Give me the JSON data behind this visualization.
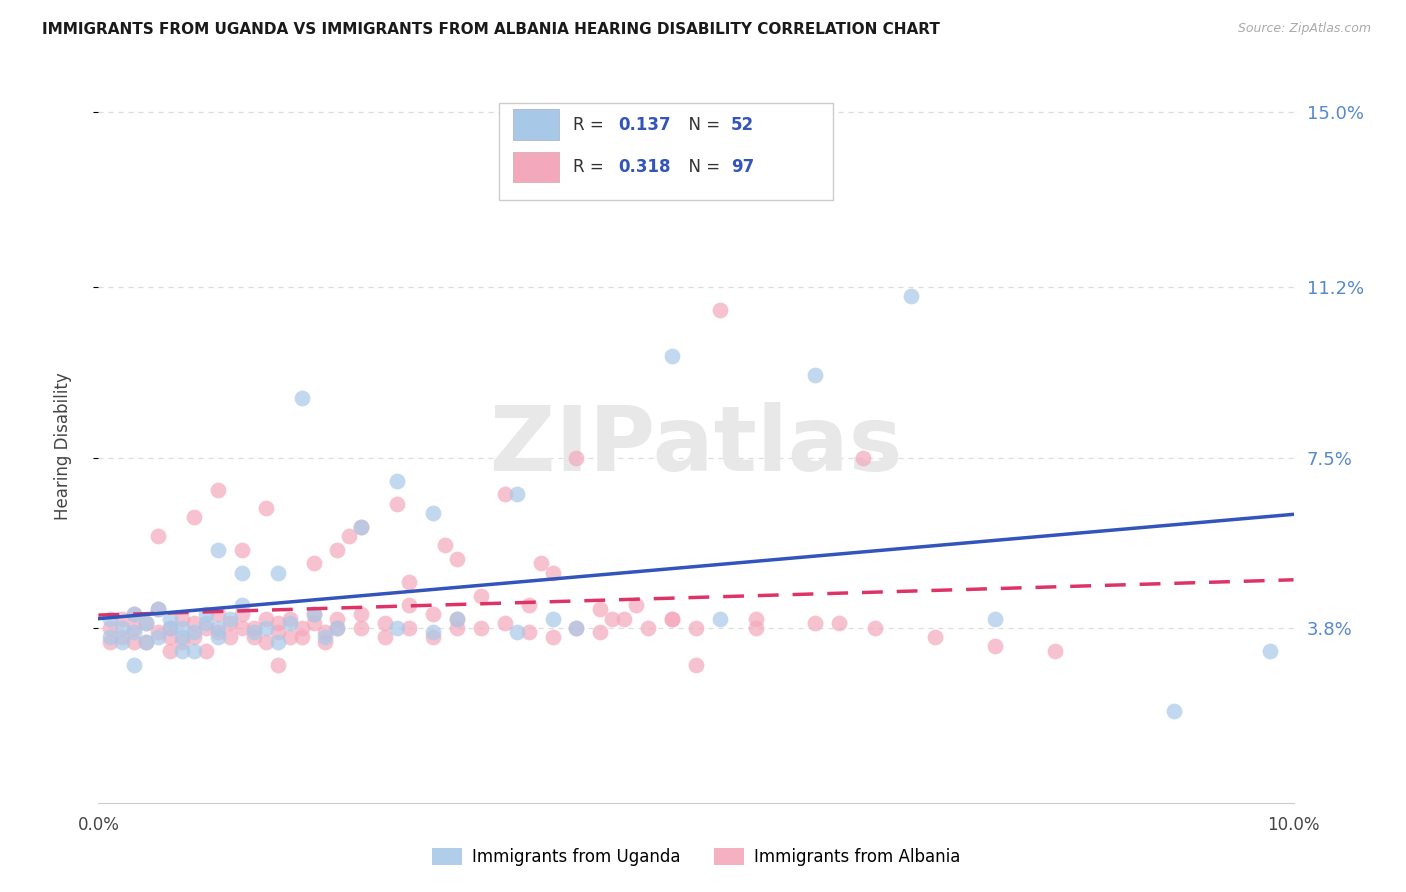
{
  "title": "IMMIGRANTS FROM UGANDA VS IMMIGRANTS FROM ALBANIA HEARING DISABILITY CORRELATION CHART",
  "source": "Source: ZipAtlas.com",
  "ylabel": "Hearing Disability",
  "xlim": [
    0.0,
    0.1
  ],
  "ylim": [
    0.0,
    0.155
  ],
  "uganda_color": "#a8c8e8",
  "albania_color": "#f4a8bc",
  "uganda_N": 52,
  "albania_N": 97,
  "uganda_R": 0.137,
  "albania_R": 0.318,
  "uganda_line_color": "#3355bb",
  "albania_line_color": "#dd3366",
  "watermark_text": "ZIPatlas",
  "watermark_color": "#e8e8e8",
  "ytick_vals": [
    0.038,
    0.075,
    0.112,
    0.15
  ],
  "ytick_labels": [
    "3.8%",
    "7.5%",
    "11.2%",
    "15.0%"
  ],
  "xtick_vals": [
    0.0,
    0.025,
    0.05,
    0.075,
    0.1
  ],
  "xtick_labels": [
    "0.0%",
    "",
    "",
    "",
    "10.0%"
  ],
  "right_tick_color": "#5588cc",
  "background_color": "#ffffff",
  "grid_color": "#dddddd",
  "legend_text_color": "#333333",
  "legend_val_color": "#3355bb",
  "albania_val_color": "#dd3366"
}
